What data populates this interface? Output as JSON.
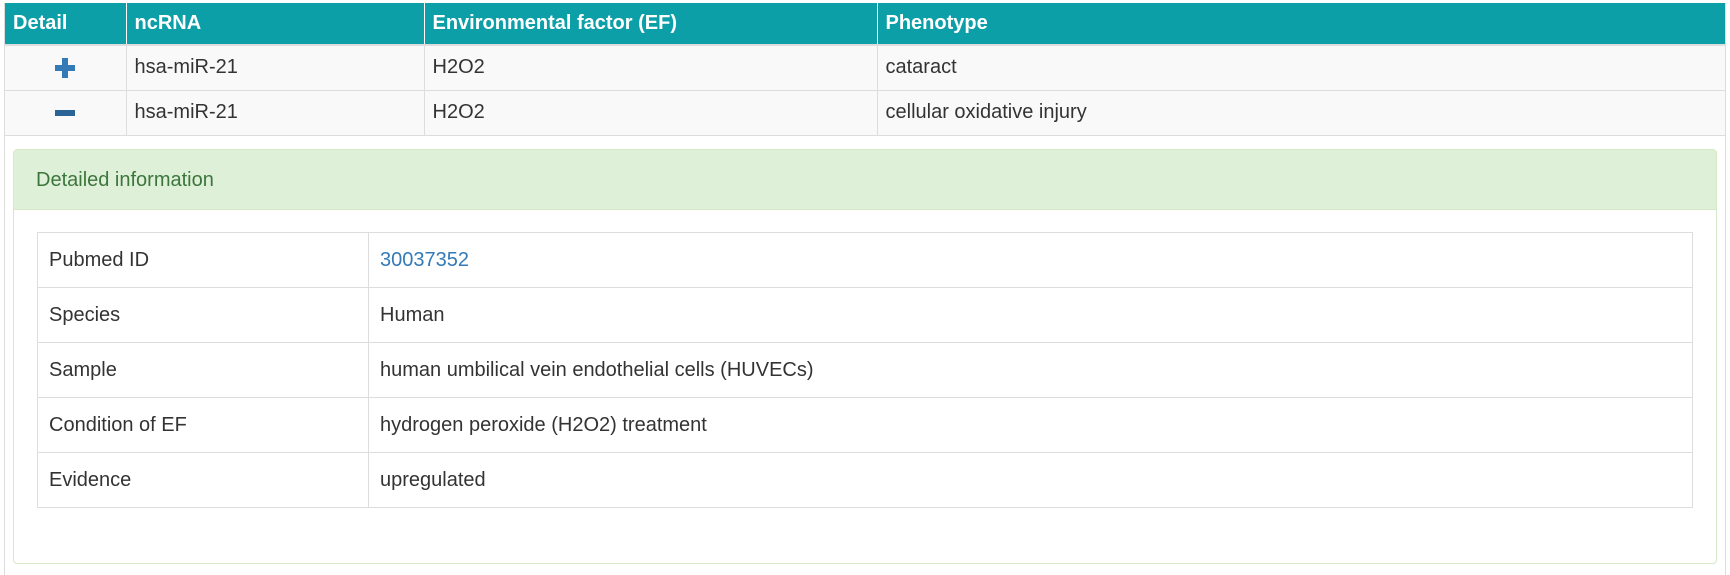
{
  "table": {
    "headers": [
      "Detail",
      "ncRNA",
      "Environmental factor (EF)",
      "Phenotype"
    ],
    "rows": [
      {
        "toggle_icon": "plus-icon",
        "ncrna": "hsa-miR-21",
        "ef": "H2O2",
        "phenotype": "cataract"
      },
      {
        "toggle_icon": "minus-icon",
        "ncrna": "hsa-miR-21",
        "ef": "H2O2",
        "phenotype": "cellular oxidative injury"
      }
    ]
  },
  "detail_panel": {
    "title": "Detailed information",
    "fields": [
      {
        "label": "Pubmed ID",
        "value": "30037352"
      },
      {
        "label": "Species",
        "value": "Human"
      },
      {
        "label": "Sample",
        "value": "human umbilical vein endothelial cells (HUVECs)"
      },
      {
        "label": "Condition of EF",
        "value": "hydrogen peroxide (H2O2) treatment"
      },
      {
        "label": "Evidence",
        "value": "upregulated"
      }
    ]
  },
  "colors": {
    "header_bg": "#0d9fa8",
    "link": "#337ab7",
    "panel_heading_bg": "#dff0d8",
    "panel_heading_text": "#3c763d"
  }
}
